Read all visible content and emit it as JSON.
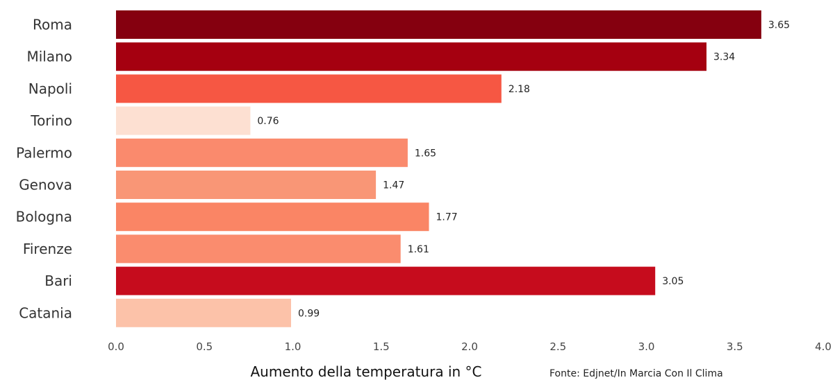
{
  "chart_data": {
    "type": "bar",
    "orientation": "horizontal",
    "categories": [
      "Roma",
      "Milano",
      "Napoli",
      "Torino",
      "Palermo",
      "Genova",
      "Bologna",
      "Firenze",
      "Bari",
      "Catania"
    ],
    "values": [
      3.65,
      3.34,
      2.18,
      0.76,
      1.65,
      1.47,
      1.77,
      1.61,
      3.05,
      0.99
    ],
    "value_labels": [
      "3.65",
      "3.34",
      "2.18",
      "0.76",
      "1.65",
      "1.47",
      "1.77",
      "1.61",
      "3.05",
      "0.99"
    ],
    "colors": [
      "#85000f",
      "#a50010",
      "#f65743",
      "#fde0d2",
      "#fa8a6d",
      "#f99676",
      "#fa8565",
      "#fa8c6e",
      "#c60c1d",
      "#fcc2a9"
    ],
    "xlabel": "Aumento della temperatura in °C",
    "ylabel": "",
    "xlim": [
      0.0,
      4.0
    ],
    "xticks": [
      0.0,
      0.5,
      1.0,
      1.5,
      2.0,
      2.5,
      3.0,
      3.5,
      4.0
    ],
    "xtick_labels": [
      "0.0",
      "0.5",
      "1.0",
      "1.5",
      "2.0",
      "2.5",
      "3.0",
      "3.5",
      "4.0"
    ],
    "grid": false
  },
  "source": "Fonte: Edjnet/In Marcia Con Il Clima"
}
